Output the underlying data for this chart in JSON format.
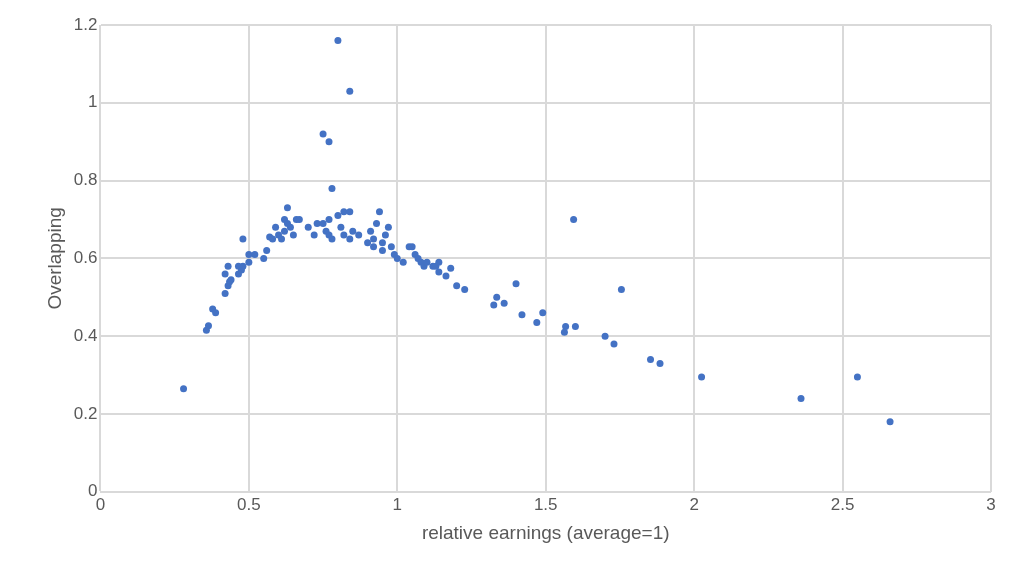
{
  "chart_data": {
    "type": "scatter",
    "xlabel": "relative earnings (average=1)",
    "ylabel": "Overlapping",
    "x": [
      0.28,
      0.357,
      0.364,
      0.378,
      0.388,
      0.42,
      0.43,
      0.435,
      0.44,
      0.42,
      0.43,
      0.465,
      0.475,
      0.48,
      0.465,
      0.48,
      0.5,
      0.5,
      0.52,
      0.55,
      0.56,
      0.57,
      0.58,
      0.59,
      0.6,
      0.61,
      0.62,
      0.62,
      0.63,
      0.63,
      0.64,
      0.65,
      0.66,
      0.67,
      0.7,
      0.72,
      0.73,
      0.75,
      0.76,
      0.77,
      0.77,
      0.78,
      0.78,
      0.8,
      0.81,
      0.82,
      0.82,
      0.84,
      0.84,
      0.85,
      0.87,
      0.9,
      0.91,
      0.92,
      0.92,
      0.93,
      0.94,
      0.95,
      0.95,
      0.96,
      0.97,
      0.98,
      0.99,
      1.0,
      1.02,
      1.04,
      1.05,
      1.06,
      1.07,
      1.08,
      1.09,
      1.1,
      1.12,
      1.13,
      1.14,
      1.14,
      1.164,
      1.18,
      1.2,
      1.227,
      0.75,
      0.77,
      0.8,
      0.84,
      1.594,
      1.4,
      1.755,
      1.335,
      1.325,
      1.36,
      1.42,
      1.49,
      1.47,
      1.567,
      1.563,
      1.6,
      1.7,
      1.73,
      1.853,
      1.885,
      2.025,
      2.36,
      2.55,
      2.66
    ],
    "values": [
      0.265,
      0.415,
      0.427,
      0.47,
      0.46,
      0.51,
      0.53,
      0.54,
      0.545,
      0.56,
      0.58,
      0.56,
      0.57,
      0.58,
      0.58,
      0.65,
      0.59,
      0.61,
      0.61,
      0.6,
      0.62,
      0.655,
      0.65,
      0.68,
      0.66,
      0.65,
      0.67,
      0.7,
      0.73,
      0.69,
      0.68,
      0.66,
      0.7,
      0.7,
      0.68,
      0.66,
      0.69,
      0.69,
      0.67,
      0.7,
      0.66,
      0.65,
      0.78,
      0.71,
      0.68,
      0.72,
      0.66,
      0.72,
      0.65,
      0.67,
      0.66,
      0.64,
      0.67,
      0.65,
      0.63,
      0.69,
      0.72,
      0.64,
      0.62,
      0.66,
      0.68,
      0.63,
      0.61,
      0.6,
      0.59,
      0.63,
      0.63,
      0.61,
      0.6,
      0.59,
      0.58,
      0.59,
      0.58,
      0.58,
      0.59,
      0.565,
      0.555,
      0.575,
      0.53,
      0.52,
      0.92,
      0.9,
      1.16,
      1.03,
      0.7,
      0.535,
      0.52,
      0.5,
      0.48,
      0.485,
      0.455,
      0.46,
      0.435,
      0.425,
      0.41,
      0.425,
      0.4,
      0.38,
      0.34,
      0.33,
      0.295,
      0.24,
      0.295,
      0.18
    ],
    "color": "#4472c4",
    "marker": "circle",
    "grid": true,
    "legend": false,
    "xlim": [
      0,
      3
    ],
    "xticks": [
      0,
      0.5,
      1,
      1.5,
      2,
      2.5,
      3
    ],
    "ylim": [
      0,
      1.2
    ],
    "yticks": [
      0,
      0.2,
      0.4,
      0.6,
      0.8,
      1,
      1.2
    ]
  }
}
